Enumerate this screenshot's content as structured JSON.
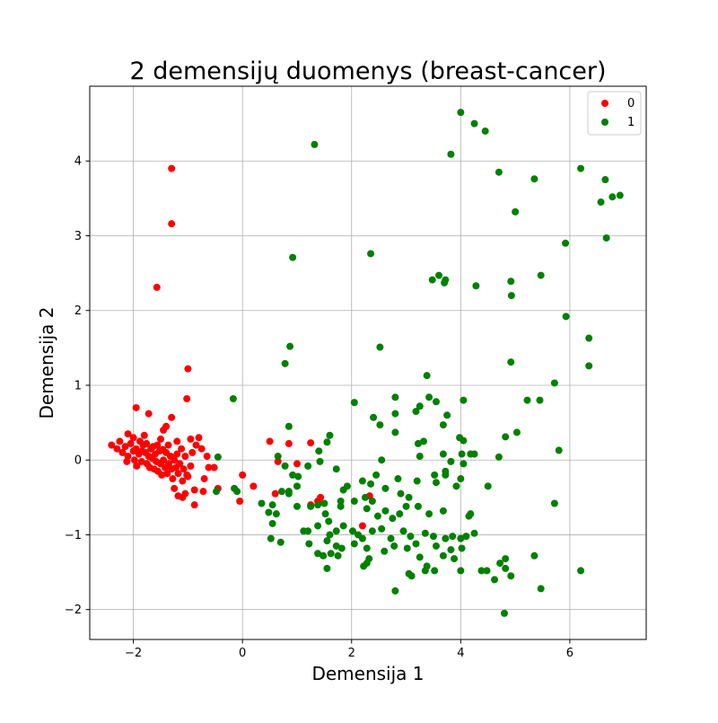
{
  "chart_data": {
    "type": "scatter",
    "title": "2 demensijų duomenys (breast-cancer)",
    "xlabel": "Demensija 1",
    "ylabel": "Demensija 2",
    "xlim": [
      -2.8,
      7.4
    ],
    "ylim": [
      -2.4,
      5.0
    ],
    "xticks": [
      -2,
      0,
      2,
      4,
      6
    ],
    "yticks": [
      -2,
      -1,
      0,
      1,
      2,
      3,
      4
    ],
    "grid": true,
    "legend_position": "top-right",
    "series": [
      {
        "name": "0",
        "color": "#ff0000",
        "points": [
          [
            -1.3,
            3.9
          ],
          [
            -1.3,
            3.16
          ],
          [
            -1.57,
            2.31
          ],
          [
            -1.0,
            1.22
          ],
          [
            -1.02,
            0.82
          ],
          [
            -1.95,
            0.7
          ],
          [
            -1.72,
            0.62
          ],
          [
            -1.3,
            0.57
          ],
          [
            -1.4,
            0.45
          ],
          [
            -1.45,
            0.4
          ],
          [
            -2.1,
            0.35
          ],
          [
            -1.8,
            0.33
          ],
          [
            -1.5,
            0.28
          ],
          [
            -1.2,
            0.25
          ],
          [
            -0.95,
            0.28
          ],
          [
            -0.8,
            0.3
          ],
          [
            -0.75,
            0.15
          ],
          [
            -0.65,
            0.05
          ],
          [
            -0.62,
            -0.1
          ],
          [
            -0.52,
            -0.1
          ],
          [
            -0.45,
            -0.38
          ],
          [
            -0.72,
            -0.42
          ],
          [
            -0.88,
            -0.4
          ],
          [
            -1.0,
            -0.22
          ],
          [
            -1.25,
            -0.38
          ],
          [
            -1.18,
            -0.48
          ],
          [
            -1.1,
            -0.5
          ],
          [
            -1.05,
            -0.45
          ],
          [
            -0.88,
            -0.6
          ],
          [
            -0.7,
            -0.25
          ],
          [
            -2.4,
            0.2
          ],
          [
            -2.3,
            0.15
          ],
          [
            -2.25,
            0.25
          ],
          [
            -2.2,
            0.1
          ],
          [
            -2.15,
            0.18
          ],
          [
            -2.1,
            0.05
          ],
          [
            -2.05,
            0.22
          ],
          [
            -2.0,
            0.12
          ],
          [
            -1.98,
            0.0
          ],
          [
            -1.95,
            0.15
          ],
          [
            -1.9,
            0.08
          ],
          [
            -1.85,
            -0.02
          ],
          [
            -1.82,
            0.2
          ],
          [
            -1.78,
            0.1
          ],
          [
            -1.75,
            -0.05
          ],
          [
            -1.72,
            0.05
          ],
          [
            -1.7,
            -0.1
          ],
          [
            -1.68,
            0.15
          ],
          [
            -1.65,
            0.02
          ],
          [
            -1.62,
            -0.12
          ],
          [
            -1.6,
            0.08
          ],
          [
            -1.58,
            -0.02
          ],
          [
            -1.55,
            -0.15
          ],
          [
            -1.52,
            0.12
          ],
          [
            -1.5,
            -0.05
          ],
          [
            -1.48,
            -0.2
          ],
          [
            -1.45,
            0.0
          ],
          [
            -1.42,
            -0.1
          ],
          [
            -1.4,
            0.1
          ],
          [
            -1.38,
            -0.18
          ],
          [
            -1.35,
            -0.05
          ],
          [
            -1.32,
            0.05
          ],
          [
            -1.3,
            -0.12
          ],
          [
            -1.28,
            -0.25
          ],
          [
            -1.25,
            0.0
          ],
          [
            -1.22,
            -0.1
          ],
          [
            -1.2,
            0.08
          ],
          [
            -1.18,
            -0.18
          ],
          [
            -1.15,
            -0.05
          ],
          [
            -1.12,
            0.15
          ],
          [
            -1.1,
            -0.28
          ],
          [
            -1.08,
            -0.12
          ],
          [
            -1.05,
            0.05
          ],
          [
            -1.02,
            -0.2
          ],
          [
            -2.0,
            0.3
          ],
          [
            -1.88,
            0.25
          ],
          [
            -1.76,
            0.22
          ],
          [
            -1.64,
            0.18
          ],
          [
            -2.12,
            -0.02
          ],
          [
            -1.94,
            -0.08
          ],
          [
            -1.84,
            0.12
          ],
          [
            -1.56,
            0.2
          ],
          [
            -1.46,
            0.14
          ],
          [
            -1.36,
            0.2
          ],
          [
            -0.92,
            0.1
          ],
          [
            -0.85,
            0.2
          ],
          [
            -0.95,
            -0.08
          ],
          [
            0.5,
            0.25
          ],
          [
            0.85,
            0.22
          ],
          [
            1.25,
            0.23
          ],
          [
            0.0,
            -0.2
          ],
          [
            -0.05,
            -0.55
          ],
          [
            0.2,
            -0.35
          ],
          [
            0.6,
            -0.45
          ],
          [
            0.65,
            -0.02
          ],
          [
            1.0,
            -0.05
          ],
          [
            1.25,
            -0.6
          ],
          [
            1.43,
            -0.5
          ],
          [
            1.38,
            -0.55
          ],
          [
            2.2,
            -0.88
          ],
          [
            2.33,
            -0.48
          ]
        ]
      },
      {
        "name": "1",
        "color": "#008000",
        "points": [
          [
            4.0,
            4.65
          ],
          [
            4.25,
            4.5
          ],
          [
            4.45,
            4.4
          ],
          [
            1.32,
            4.22
          ],
          [
            3.82,
            4.09
          ],
          [
            4.7,
            3.85
          ],
          [
            5.35,
            3.76
          ],
          [
            6.2,
            3.9
          ],
          [
            6.65,
            3.75
          ],
          [
            6.92,
            3.54
          ],
          [
            6.78,
            3.52
          ],
          [
            6.57,
            3.45
          ],
          [
            5.0,
            3.32
          ],
          [
            6.67,
            2.97
          ],
          [
            5.92,
            2.9
          ],
          [
            2.35,
            2.76
          ],
          [
            0.92,
            2.71
          ],
          [
            3.6,
            2.47
          ],
          [
            3.72,
            2.41
          ],
          [
            3.48,
            2.41
          ],
          [
            3.7,
            2.37
          ],
          [
            4.28,
            2.33
          ],
          [
            4.92,
            2.39
          ],
          [
            5.47,
            2.47
          ],
          [
            4.93,
            2.2
          ],
          [
            5.93,
            1.92
          ],
          [
            0.87,
            1.52
          ],
          [
            2.52,
            1.51
          ],
          [
            0.78,
            1.29
          ],
          [
            6.35,
            1.63
          ],
          [
            6.35,
            1.26
          ],
          [
            4.92,
            1.31
          ],
          [
            3.38,
            1.13
          ],
          [
            5.72,
            1.03
          ],
          [
            -0.17,
            0.82
          ],
          [
            2.05,
            0.77
          ],
          [
            2.8,
            0.84
          ],
          [
            3.42,
            0.84
          ],
          [
            4.05,
            0.8
          ],
          [
            5.22,
            0.8
          ],
          [
            5.45,
            0.8
          ],
          [
            3.25,
            0.72
          ],
          [
            3.18,
            0.65
          ],
          [
            3.55,
            0.78
          ],
          [
            3.75,
            0.6
          ],
          [
            2.4,
            0.57
          ],
          [
            2.8,
            0.62
          ],
          [
            3.68,
            0.47
          ],
          [
            3.98,
            0.3
          ],
          [
            4.05,
            0.26
          ],
          [
            3.32,
            0.25
          ],
          [
            3.22,
            0.22
          ],
          [
            2.8,
            0.37
          ],
          [
            2.52,
            0.47
          ],
          [
            0.85,
            0.45
          ],
          [
            1.6,
            0.33
          ],
          [
            1.55,
            0.24
          ],
          [
            1.4,
            0.12
          ],
          [
            5.03,
            0.37
          ],
          [
            4.82,
            0.31
          ],
          [
            5.8,
            0.13
          ],
          [
            4.25,
            0.08
          ],
          [
            4.18,
            0.08
          ],
          [
            4.02,
            0.08
          ],
          [
            3.68,
            0.08
          ],
          [
            3.25,
            0.05
          ],
          [
            4.7,
            0.04
          ],
          [
            -0.45,
            0.04
          ],
          [
            0.65,
            0.05
          ],
          [
            2.55,
            0.0
          ],
          [
            1.42,
            -0.02
          ],
          [
            3.82,
            -0.02
          ],
          [
            4.05,
            -0.05
          ],
          [
            0.78,
            -0.08
          ],
          [
            1.2,
            -0.08
          ],
          [
            1.72,
            -0.12
          ],
          [
            3.72,
            -0.15
          ],
          [
            3.52,
            -0.2
          ],
          [
            3.72,
            -0.2
          ],
          [
            2.45,
            -0.2
          ],
          [
            2.85,
            -0.25
          ],
          [
            4.0,
            -0.25
          ],
          [
            0.92,
            -0.2
          ],
          [
            1.02,
            -0.22
          ],
          [
            3.2,
            -0.28
          ],
          [
            2.2,
            -0.28
          ],
          [
            1.92,
            -0.35
          ],
          [
            2.35,
            -0.32
          ],
          [
            2.62,
            -0.38
          ],
          [
            3.55,
            -0.3
          ],
          [
            3.92,
            -0.35
          ],
          [
            4.5,
            -0.35
          ],
          [
            1.85,
            -0.4
          ],
          [
            1.0,
            -0.35
          ],
          [
            0.85,
            -0.42
          ],
          [
            -0.48,
            -0.42
          ],
          [
            -0.15,
            -0.38
          ],
          [
            -0.1,
            -0.42
          ],
          [
            0.35,
            -0.58
          ],
          [
            0.55,
            -0.6
          ],
          [
            0.72,
            -0.42
          ],
          [
            0.85,
            -0.45
          ],
          [
            1.5,
            -0.58
          ],
          [
            1.8,
            -0.55
          ],
          [
            2.05,
            -0.55
          ],
          [
            2.25,
            -0.5
          ],
          [
            2.38,
            -0.55
          ],
          [
            2.9,
            -0.45
          ],
          [
            3.05,
            -0.5
          ],
          [
            1.38,
            -0.6
          ],
          [
            0.48,
            -0.7
          ],
          [
            0.55,
            -0.85
          ],
          [
            0.62,
            -0.72
          ],
          [
            1.0,
            -0.62
          ],
          [
            1.25,
            -0.62
          ],
          [
            1.52,
            -0.72
          ],
          [
            1.58,
            -0.82
          ],
          [
            1.8,
            -0.62
          ],
          [
            2.28,
            -0.65
          ],
          [
            2.48,
            -0.75
          ],
          [
            2.62,
            -0.68
          ],
          [
            2.75,
            -0.78
          ],
          [
            2.88,
            -0.72
          ],
          [
            3.0,
            -0.62
          ],
          [
            3.22,
            -0.62
          ],
          [
            3.42,
            -0.72
          ],
          [
            3.68,
            -0.68
          ],
          [
            4.18,
            -0.72
          ],
          [
            4.15,
            -0.75
          ],
          [
            5.72,
            -0.58
          ],
          [
            1.12,
            -0.95
          ],
          [
            1.2,
            -0.95
          ],
          [
            1.38,
            -0.88
          ],
          [
            1.6,
            -1.0
          ],
          [
            1.72,
            -0.95
          ],
          [
            1.85,
            -0.88
          ],
          [
            2.02,
            -0.95
          ],
          [
            2.12,
            -1.0
          ],
          [
            2.2,
            -1.05
          ],
          [
            2.38,
            -0.95
          ],
          [
            2.55,
            -0.92
          ],
          [
            2.72,
            -1.05
          ],
          [
            2.95,
            -0.95
          ],
          [
            3.08,
            -1.02
          ],
          [
            3.35,
            -0.98
          ],
          [
            3.5,
            -1.02
          ],
          [
            3.72,
            -1.05
          ],
          [
            3.85,
            -1.02
          ],
          [
            4.0,
            -1.05
          ],
          [
            4.1,
            -1.02
          ],
          [
            4.25,
            -0.98
          ],
          [
            0.52,
            -1.05
          ],
          [
            0.7,
            -1.1
          ],
          [
            1.22,
            -1.12
          ],
          [
            1.55,
            -1.08
          ],
          [
            1.72,
            -1.15
          ],
          [
            1.82,
            -1.18
          ],
          [
            2.05,
            -1.12
          ],
          [
            2.28,
            -1.18
          ],
          [
            2.6,
            -1.22
          ],
          [
            2.78,
            -1.15
          ],
          [
            3.02,
            -1.18
          ],
          [
            3.18,
            -1.12
          ],
          [
            3.55,
            -1.15
          ],
          [
            3.82,
            -1.2
          ],
          [
            4.02,
            -1.18
          ],
          [
            1.38,
            -1.25
          ],
          [
            1.48,
            -1.28
          ],
          [
            1.62,
            -1.25
          ],
          [
            1.75,
            -1.28
          ],
          [
            2.32,
            -1.32
          ],
          [
            3.25,
            -1.3
          ],
          [
            3.68,
            -1.28
          ],
          [
            3.88,
            -1.32
          ],
          [
            5.35,
            -1.28
          ],
          [
            4.82,
            -1.32
          ],
          [
            4.72,
            -1.38
          ],
          [
            2.22,
            -1.42
          ],
          [
            2.28,
            -1.38
          ],
          [
            3.38,
            -1.42
          ],
          [
            3.52,
            -1.48
          ],
          [
            4.0,
            -1.48
          ],
          [
            4.38,
            -1.48
          ],
          [
            4.48,
            -1.48
          ],
          [
            4.82,
            -1.45
          ],
          [
            1.55,
            -1.45
          ],
          [
            3.05,
            -1.52
          ],
          [
            3.35,
            -1.48
          ],
          [
            6.2,
            -1.48
          ],
          [
            4.92,
            -1.55
          ],
          [
            4.62,
            -1.6
          ],
          [
            3.1,
            -1.55
          ],
          [
            2.8,
            -1.75
          ],
          [
            5.47,
            -1.72
          ],
          [
            4.8,
            -2.05
          ]
        ]
      }
    ]
  }
}
